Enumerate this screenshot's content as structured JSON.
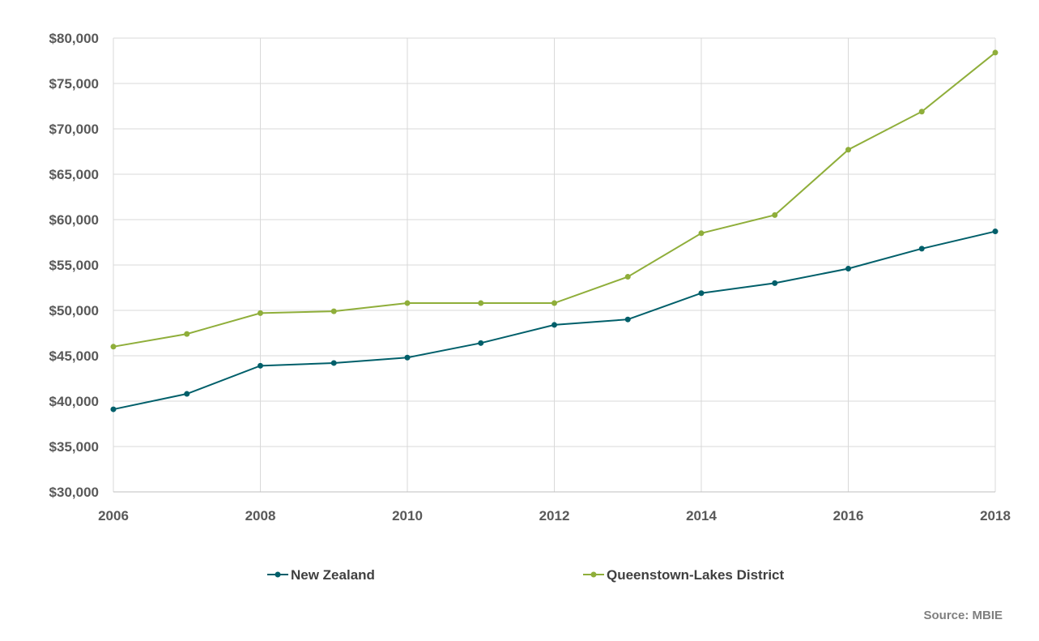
{
  "chart_data": {
    "type": "line",
    "x": [
      2006,
      2007,
      2008,
      2009,
      2010,
      2011,
      2012,
      2013,
      2014,
      2015,
      2016,
      2017,
      2018
    ],
    "xticks": [
      "2006",
      "2008",
      "2010",
      "2012",
      "2014",
      "2016",
      "2018"
    ],
    "yticks": [
      "$30,000",
      "$35,000",
      "$40,000",
      "$45,000",
      "$50,000",
      "$55,000",
      "$60,000",
      "$65,000",
      "$70,000",
      "$75,000",
      "$80,000"
    ],
    "ylim": [
      30000,
      80000
    ],
    "xlim": [
      2006,
      2018
    ],
    "grid": true,
    "legend_position": "bottom",
    "series": [
      {
        "name": "New Zealand",
        "color": "#005f6a",
        "values": [
          39100,
          40800,
          43900,
          44200,
          44800,
          46400,
          48400,
          49000,
          51900,
          53000,
          54600,
          56800,
          58700
        ]
      },
      {
        "name": "Queenstown-Lakes District",
        "color": "#8fae3a",
        "values": [
          46000,
          47400,
          49700,
          49900,
          50800,
          50800,
          50800,
          53700,
          58500,
          60500,
          67700,
          71900,
          78400
        ]
      }
    ],
    "source": "Source: MBIE"
  }
}
